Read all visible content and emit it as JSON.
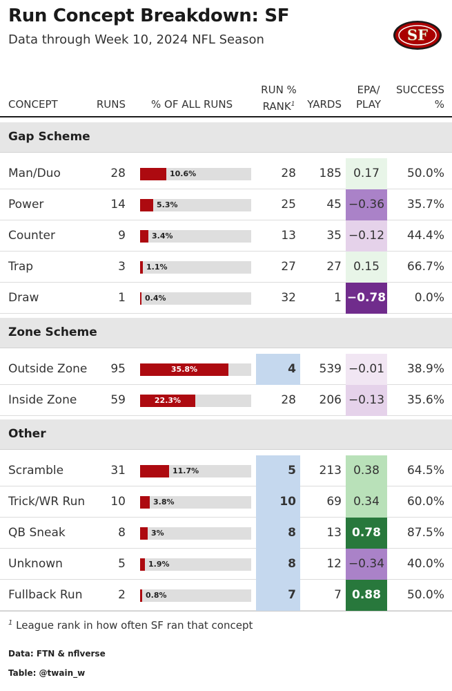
{
  "title": "Run Concept Breakdown: SF",
  "subtitle": "Data through Week 10, 2024 NFL Season",
  "logo": {
    "icon": "sf-49ers-logo",
    "text": "SF",
    "colors": {
      "oval": "#aa0000",
      "gold": "#b3995d"
    }
  },
  "headers": {
    "concept": "CONCEPT",
    "runs": "RUNS",
    "pct": "% OF ALL RUNS",
    "rank_line1": "RUN %",
    "rank_line2": "RANK",
    "rank_sup": "1",
    "yards": "YARDS",
    "epa_line1": "EPA/",
    "epa_line2": "PLAY",
    "success_line1": "SUCCESS",
    "success_line2": "%"
  },
  "colors": {
    "bar": "#ad0a10",
    "bar_bg": "#dedede",
    "rank_highlight": "#c5d8ee",
    "epa_scale": "green = positive EPA, purple = negative EPA"
  },
  "chart_data": {
    "type": "table",
    "max_pct_scale": 45,
    "groups": [
      {
        "name": "Gap Scheme",
        "rows": [
          {
            "concept": "Man/Duo",
            "runs": "28",
            "pct": 10.6,
            "pct_label": "10.6%",
            "rank": "28",
            "rank_hl": false,
            "yards": "185",
            "epa": 0.17,
            "epa_label": "0.17",
            "success": "50.0%"
          },
          {
            "concept": "Power",
            "runs": "14",
            "pct": 5.3,
            "pct_label": "5.3%",
            "rank": "25",
            "rank_hl": false,
            "yards": "45",
            "epa": -0.36,
            "epa_label": "−0.36",
            "success": "35.7%"
          },
          {
            "concept": "Counter",
            "runs": "9",
            "pct": 3.4,
            "pct_label": "3.4%",
            "rank": "13",
            "rank_hl": false,
            "yards": "35",
            "epa": -0.12,
            "epa_label": "−0.12",
            "success": "44.4%"
          },
          {
            "concept": "Trap",
            "runs": "3",
            "pct": 1.1,
            "pct_label": "1.1%",
            "rank": "27",
            "rank_hl": false,
            "yards": "27",
            "epa": 0.15,
            "epa_label": "0.15",
            "success": "66.7%"
          },
          {
            "concept": "Draw",
            "runs": "1",
            "pct": 0.4,
            "pct_label": "0.4%",
            "rank": "32",
            "rank_hl": false,
            "yards": "1",
            "epa": -0.78,
            "epa_label": "−0.78",
            "success": "0.0%"
          }
        ]
      },
      {
        "name": "Zone Scheme",
        "rows": [
          {
            "concept": "Outside Zone",
            "runs": "95",
            "pct": 35.8,
            "pct_label": "35.8%",
            "rank": "4",
            "rank_hl": true,
            "yards": "539",
            "epa": -0.01,
            "epa_label": "−0.01",
            "success": "38.9%"
          },
          {
            "concept": "Inside Zone",
            "runs": "59",
            "pct": 22.3,
            "pct_label": "22.3%",
            "rank": "28",
            "rank_hl": false,
            "yards": "206",
            "epa": -0.13,
            "epa_label": "−0.13",
            "success": "35.6%"
          }
        ]
      },
      {
        "name": "Other",
        "rows": [
          {
            "concept": "Scramble",
            "runs": "31",
            "pct": 11.7,
            "pct_label": "11.7%",
            "rank": "5",
            "rank_hl": true,
            "yards": "213",
            "epa": 0.38,
            "epa_label": "0.38",
            "success": "64.5%"
          },
          {
            "concept": "Trick/WR Run",
            "runs": "10",
            "pct": 3.8,
            "pct_label": "3.8%",
            "rank": "10",
            "rank_hl": true,
            "yards": "69",
            "epa": 0.34,
            "epa_label": "0.34",
            "success": "60.0%"
          },
          {
            "concept": "QB Sneak",
            "runs": "8",
            "pct": 3.0,
            "pct_label": "3%",
            "rank": "8",
            "rank_hl": true,
            "yards": "13",
            "epa": 0.78,
            "epa_label": "0.78",
            "success": "87.5%"
          },
          {
            "concept": "Unknown",
            "runs": "5",
            "pct": 1.9,
            "pct_label": "1.9%",
            "rank": "8",
            "rank_hl": true,
            "yards": "12",
            "epa": -0.34,
            "epa_label": "−0.34",
            "success": "40.0%"
          },
          {
            "concept": "Fullback Run",
            "runs": "2",
            "pct": 0.8,
            "pct_label": "0.8%",
            "rank": "7",
            "rank_hl": true,
            "yards": "7",
            "epa": 0.88,
            "epa_label": "0.88",
            "success": "50.0%"
          }
        ]
      }
    ]
  },
  "footnote": {
    "sup": "1",
    "text": "League rank in how often SF ran that concept"
  },
  "source": "Data: FTN & nflverse",
  "credit": "Table: @twain_w"
}
